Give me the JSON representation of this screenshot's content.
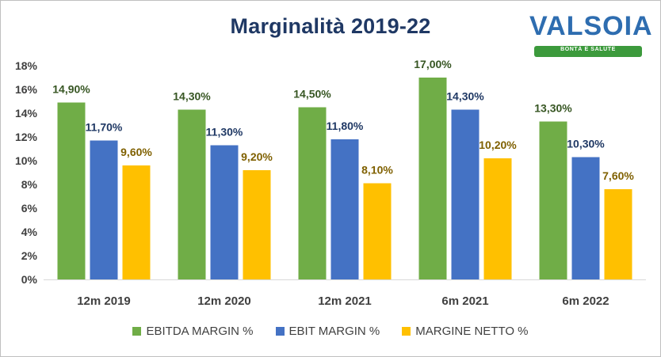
{
  "title": "Marginalità 2019-22",
  "logo": {
    "word": "VALSOIA",
    "tagline": "BONTÀ E SALUTE"
  },
  "chart_data": {
    "type": "bar",
    "title": "Marginalità 2019-22",
    "categories": [
      "12m 2019",
      "12m 2020",
      "12m 2021",
      "6m 2021",
      "6m 2022"
    ],
    "series": [
      {
        "name": "EBITDA MARGIN %",
        "values": [
          14.9,
          14.3,
          14.5,
          17.0,
          13.3
        ],
        "labels": [
          "14,90%",
          "14,30%",
          "14,50%",
          "17,00%",
          "13,30%"
        ],
        "color": "#70ad47",
        "label_color": "#375623"
      },
      {
        "name": "EBIT MARGIN %",
        "values": [
          11.7,
          11.3,
          11.8,
          14.3,
          10.3
        ],
        "labels": [
          "11,70%",
          "11,30%",
          "11,80%",
          "14,30%",
          "10,30%"
        ],
        "color": "#4472c4",
        "label_color": "#1f3864"
      },
      {
        "name": "MARGINE NETTO %",
        "values": [
          9.6,
          9.2,
          8.1,
          10.2,
          7.6
        ],
        "labels": [
          "9,60%",
          "9,20%",
          "8,10%",
          "10,20%",
          "7,60%"
        ],
        "color": "#ffc000",
        "label_color": "#7f6000"
      }
    ],
    "ylim": [
      0,
      18
    ],
    "yticks": [
      "0%",
      "2%",
      "4%",
      "6%",
      "8%",
      "10%",
      "12%",
      "14%",
      "16%",
      "18%"
    ],
    "grid": false,
    "legend": "bottom"
  }
}
